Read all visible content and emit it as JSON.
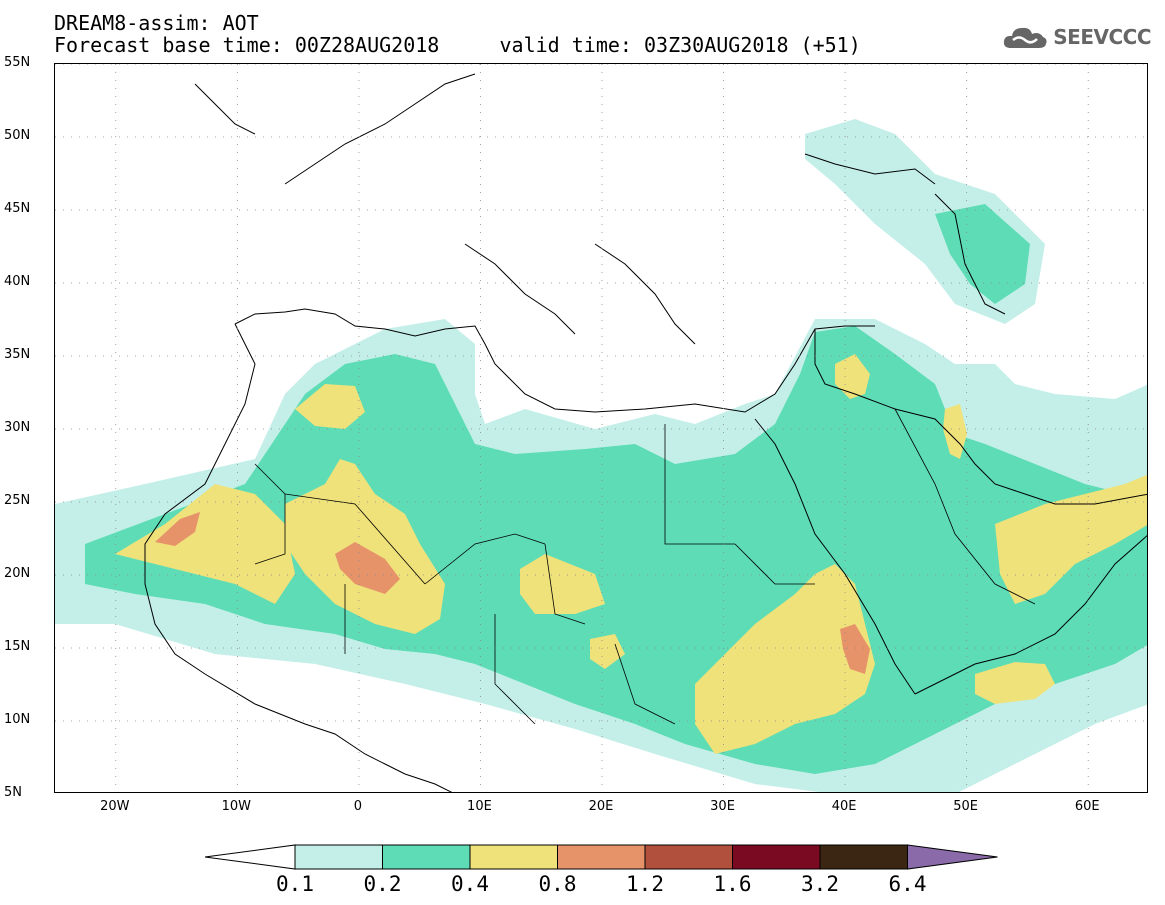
{
  "header": {
    "title_line1": "DREAM8-assim: AOT",
    "title_line2": "Forecast base time: 00Z28AUG2018     valid time: 03Z30AUG2018 (+51)",
    "brand": "SEEVCCC"
  },
  "map": {
    "lon_range": [
      -25,
      65
    ],
    "lat_range": [
      5,
      55
    ],
    "lat_labels": [
      "55N",
      "50N",
      "45N",
      "40N",
      "35N",
      "30N",
      "25N",
      "20N",
      "15N",
      "10N",
      "5N"
    ],
    "lat_values": [
      55,
      50,
      45,
      40,
      35,
      30,
      25,
      20,
      15,
      10,
      5
    ],
    "lon_labels": [
      "20W",
      "10W",
      "0",
      "10E",
      "20E",
      "30E",
      "40E",
      "50E",
      "60E"
    ],
    "lon_values": [
      -20,
      -10,
      0,
      10,
      20,
      30,
      40,
      50,
      60
    ],
    "field": "AOT"
  },
  "legend": {
    "thresholds": [
      "0.1",
      "0.2",
      "0.4",
      "0.8",
      "1.2",
      "1.6",
      "3.2",
      "6.4"
    ],
    "colors": [
      "#c4efe9",
      "#5ddcb5",
      "#f0e27a",
      "#e6936a",
      "#b2503e",
      "#7a0a22",
      "#3a2612",
      "#8a6aa8"
    ]
  },
  "icons": {
    "brand_logo": "cloud-icon"
  }
}
